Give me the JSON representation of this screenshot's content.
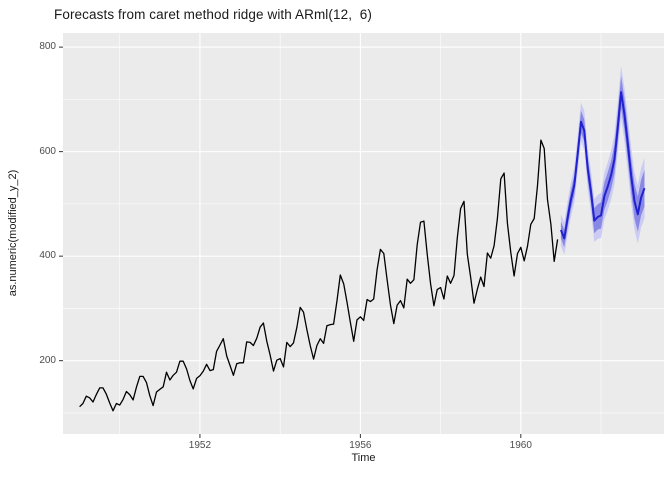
{
  "title": "Forecasts from caret method ridge with ARml(12,  6)",
  "colors": {
    "panel_bg": "#EBEBEB",
    "grid_major": "#FFFFFF",
    "grid_minor": "#FFFFFF",
    "observed_line": "#000000",
    "forecast_line": "#2121CE",
    "ribbon_80": "#8585E4",
    "ribbon_95": "#C9C9F3",
    "tick_mark": "#333333",
    "tick_label": "#4D4D4D",
    "title_text": "#1A1A1A"
  },
  "chart_data": {
    "type": "line",
    "title": "Forecasts from caret method ridge with ARml(12,  6)",
    "xlabel": "Time",
    "ylabel": "as.numeric(modified_y_2)",
    "legend": "none",
    "grid": true,
    "xlim": [
      1948.586,
      1963.57
    ],
    "ylim": [
      59.7,
      827
    ],
    "x_ticks": {
      "values": [
        1952,
        1956,
        1960
      ],
      "labels": [
        "1952",
        "1956",
        "1960"
      ]
    },
    "x_minor": [
      1950,
      1954,
      1958,
      1962
    ],
    "y_ticks": {
      "values": [
        200,
        400,
        600,
        800
      ],
      "labels": [
        "200",
        "400",
        "600",
        "800"
      ]
    },
    "y_minor": [
      100,
      300,
      500,
      700
    ],
    "series": [
      {
        "name": "observed",
        "start": 1949,
        "frequency": 12,
        "values": [
          112,
          118,
          132,
          129,
          121,
          135,
          148,
          148,
          136,
          119,
          104,
          118,
          115,
          126,
          141,
          135,
          125,
          149,
          170,
          170,
          158,
          133,
          114,
          140,
          145,
          150,
          178,
          163,
          172,
          178,
          199,
          199,
          184,
          162,
          146,
          166,
          171,
          180,
          193,
          181,
          183,
          218,
          230,
          242,
          209,
          191,
          172,
          194,
          196,
          196,
          236,
          235,
          229,
          243,
          264,
          272,
          237,
          211,
          180,
          201,
          204,
          188,
          235,
          227,
          234,
          264,
          302,
          293,
          259,
          229,
          203,
          229,
          242,
          233,
          267,
          269,
          270,
          315,
          364,
          347,
          312,
          274,
          237,
          278,
          284,
          277,
          317,
          313,
          318,
          374,
          413,
          405,
          355,
          306,
          271,
          306,
          315,
          301,
          356,
          348,
          355,
          422,
          465,
          467,
          404,
          347,
          305,
          336,
          340,
          318,
          362,
          348,
          363,
          435,
          491,
          505,
          404,
          359,
          310,
          337,
          360,
          342,
          406,
          396,
          420,
          472,
          548,
          559,
          463,
          407,
          362,
          405,
          417,
          391,
          419,
          461,
          472,
          535,
          622,
          606,
          508,
          461,
          390,
          432
        ]
      },
      {
        "name": "forecast_mean",
        "start": 1961,
        "frequency": 12,
        "values": [
          450,
          434,
          473,
          508,
          536,
          594,
          657,
          640,
          568,
          523,
          468,
          475,
          478,
          515,
          533,
          555,
          585,
          645,
          714,
          672,
          615,
          555,
          505,
          480,
          512,
          530
        ]
      }
    ],
    "intervals": {
      "start": 1961,
      "frequency": 12,
      "level_80": {
        "lower": [
          434,
          417,
          455,
          490,
          517,
          574,
          636,
          619,
          546,
          500,
          444,
          451,
          453,
          489,
          506,
          528,
          557,
          616,
          684,
          642,
          584,
          523,
          472,
          447,
          478,
          495
        ],
        "upper": [
          466,
          451,
          491,
          526,
          555,
          614,
          678,
          661,
          590,
          546,
          492,
          499,
          503,
          541,
          560,
          582,
          613,
          674,
          744,
          702,
          646,
          587,
          538,
          514,
          546,
          565
        ]
      },
      "level_95": {
        "lower": [
          420,
          403,
          441,
          475,
          502,
          558,
          620,
          602,
          529,
          483,
          427,
          433,
          435,
          470,
          487,
          508,
          537,
          596,
          664,
          621,
          563,
          502,
          450,
          424,
          455,
          472
        ],
        "upper": [
          480,
          465,
          505,
          541,
          571,
          630,
          694,
          678,
          607,
          563,
          509,
          517,
          521,
          560,
          579,
          602,
          633,
          694,
          764,
          723,
          667,
          609,
          560,
          536,
          569,
          588
        ]
      }
    }
  }
}
